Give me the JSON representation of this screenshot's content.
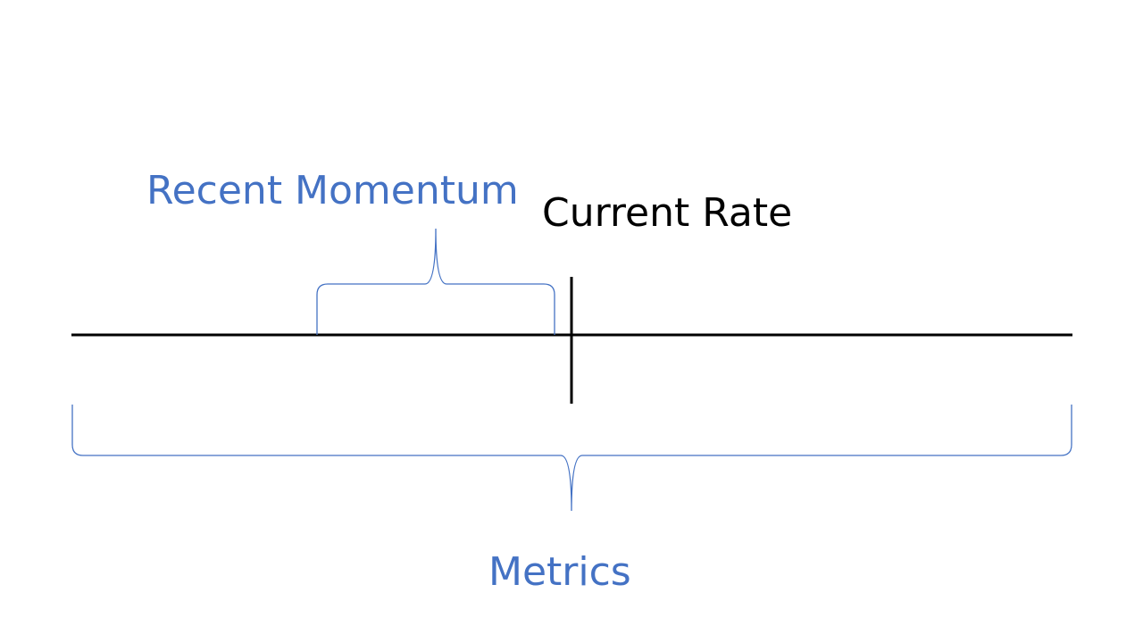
{
  "labels": {
    "recent_momentum": "Recent Momentum",
    "current_rate": "Current Rate",
    "metrics": "Metrics"
  },
  "colors": {
    "accent": "#4472C4",
    "line": "#000000",
    "background": "#FFFFFF"
  }
}
